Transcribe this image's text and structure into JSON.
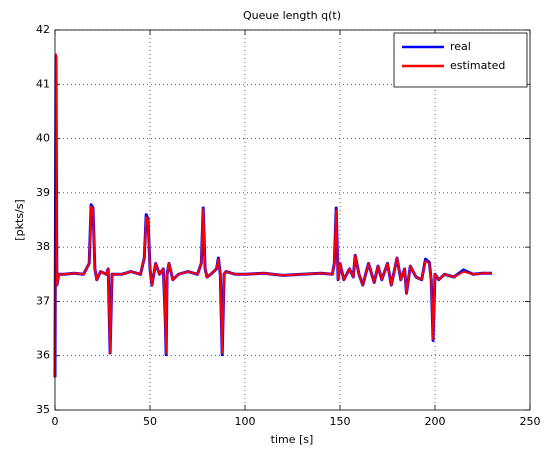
{
  "chart_data": {
    "type": "line",
    "title": "Queue length q(t)",
    "xlabel": "time [s]",
    "ylabel": "[pkts/s]",
    "xlim": [
      0,
      250
    ],
    "ylim": [
      35,
      42
    ],
    "xticks": [
      0,
      50,
      100,
      150,
      200,
      250
    ],
    "yticks": [
      35,
      36,
      37,
      38,
      39,
      40,
      41,
      42
    ],
    "grid": true,
    "legend": "upper right",
    "x": [
      0,
      0.5,
      1,
      2,
      5,
      10,
      15,
      18,
      19,
      20,
      21,
      22,
      24,
      27,
      28,
      29,
      30,
      35,
      40,
      45,
      47,
      48,
      49,
      50,
      51,
      53,
      55,
      57,
      58,
      58.5,
      59,
      60,
      62,
      65,
      70,
      75,
      77,
      78,
      79,
      80,
      82,
      85,
      86,
      87,
      88,
      89,
      90,
      95,
      100,
      110,
      120,
      130,
      140,
      146,
      147,
      148,
      149,
      150,
      152,
      155,
      157,
      158,
      160,
      162,
      165,
      168,
      170,
      172,
      175,
      177,
      180,
      182,
      184,
      185,
      187,
      190,
      193,
      195,
      197,
      198,
      199,
      200,
      202,
      205,
      210,
      215,
      220,
      225,
      230
    ],
    "series": [
      {
        "name": "real",
        "color": "#0000ff",
        "values": [
          35.6,
          41.5,
          37.3,
          37.5,
          37.5,
          37.52,
          37.5,
          37.7,
          38.78,
          38.72,
          37.6,
          37.4,
          37.55,
          37.5,
          37.6,
          36.05,
          37.5,
          37.5,
          37.55,
          37.5,
          37.8,
          38.6,
          38.52,
          37.6,
          37.3,
          37.7,
          37.5,
          37.6,
          36.7,
          36.02,
          37.5,
          37.7,
          37.4,
          37.5,
          37.55,
          37.5,
          37.7,
          38.72,
          37.6,
          37.45,
          37.5,
          37.6,
          37.8,
          37.5,
          36.02,
          37.5,
          37.55,
          37.5,
          37.5,
          37.52,
          37.48,
          37.5,
          37.52,
          37.5,
          37.7,
          38.72,
          37.4,
          37.7,
          37.4,
          37.6,
          37.45,
          37.85,
          37.5,
          37.3,
          37.7,
          37.35,
          37.65,
          37.4,
          37.7,
          37.3,
          37.8,
          37.4,
          37.6,
          37.15,
          37.65,
          37.45,
          37.4,
          37.78,
          37.72,
          37.4,
          36.28,
          37.5,
          37.4,
          37.5,
          37.45,
          37.58,
          37.5,
          37.52,
          37.52
        ]
      },
      {
        "name": "estimated",
        "color": "#ff0000",
        "values": [
          35.6,
          41.55,
          37.3,
          37.5,
          37.5,
          37.52,
          37.5,
          37.7,
          38.75,
          38.7,
          37.6,
          37.4,
          37.55,
          37.5,
          37.6,
          36.05,
          37.5,
          37.5,
          37.55,
          37.5,
          37.8,
          38.55,
          38.5,
          37.6,
          37.3,
          37.7,
          37.5,
          37.6,
          36.7,
          36.05,
          37.5,
          37.7,
          37.4,
          37.5,
          37.55,
          37.5,
          37.7,
          38.7,
          37.6,
          37.45,
          37.5,
          37.6,
          37.78,
          37.5,
          36.05,
          37.5,
          37.55,
          37.5,
          37.5,
          37.52,
          37.48,
          37.5,
          37.52,
          37.5,
          37.7,
          38.68,
          37.4,
          37.7,
          37.4,
          37.6,
          37.45,
          37.85,
          37.5,
          37.3,
          37.7,
          37.35,
          37.65,
          37.4,
          37.7,
          37.3,
          37.8,
          37.4,
          37.6,
          37.15,
          37.65,
          37.45,
          37.4,
          37.75,
          37.7,
          37.4,
          36.3,
          37.5,
          37.4,
          37.5,
          37.45,
          37.55,
          37.5,
          37.52,
          37.52
        ]
      }
    ]
  }
}
